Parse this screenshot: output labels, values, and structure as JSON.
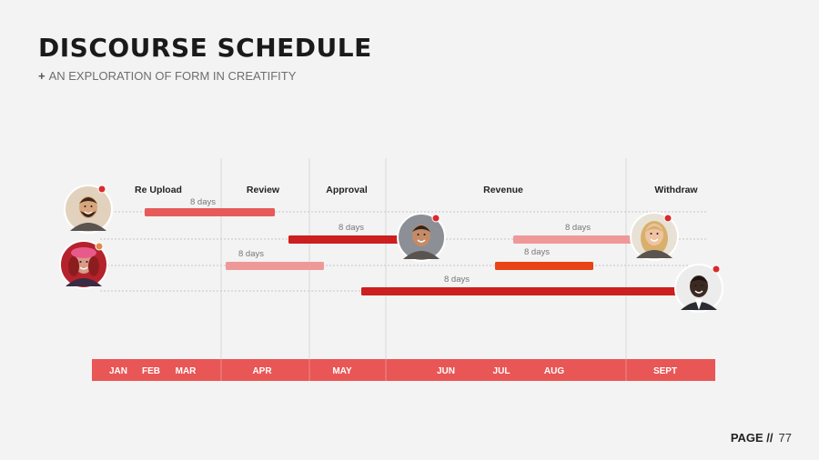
{
  "page": {
    "title": "DISCOURSE SCHEDULE",
    "subtitle_plus": "+",
    "subtitle": "AN EXPLORATION OF FORM IN CREATIFITY",
    "page_label": "PAGE //",
    "page_number": "77"
  },
  "colors": {
    "background": "#f3f3f3",
    "month_band": "#e85656",
    "bar_coral": "#e85a5a",
    "bar_red": "#cc1f1f",
    "bar_pink": "#ef9898",
    "bar_orange": "#e84416",
    "status_dot": "#d92b2b",
    "divider": "#d8d8d8",
    "row_line": "#c4c4c4",
    "duration_text": "#777777"
  },
  "chart_data": {
    "type": "gantt",
    "phases": [
      "Re Upload",
      "Review",
      "Approval",
      "Revenue",
      "Withdraw"
    ],
    "months": [
      "JAN",
      "FEB",
      "MAR",
      "APR",
      "MAY",
      "JUN",
      "JUL",
      "AUG",
      "SEPT"
    ],
    "tasks": [
      {
        "row": 1,
        "start_month": "FEB",
        "end_month": "APR",
        "duration_label": "8 days",
        "color": "coral"
      },
      {
        "row": 2,
        "start_month": "MAY",
        "end_month": "JUN",
        "duration_label": "8 days",
        "color": "red"
      },
      {
        "row": 2,
        "start_month": "JUL",
        "end_month": "SEPT",
        "duration_label": "8 days",
        "color": "pink"
      },
      {
        "row": 3,
        "start_month": "APR",
        "end_month": "MAY",
        "duration_label": "8 days",
        "color": "pink"
      },
      {
        "row": 3,
        "start_month": "JUL",
        "end_month": "AUG",
        "duration_label": "8 days",
        "color": "orange"
      },
      {
        "row": 4,
        "start_month": "MAY",
        "end_month": "SEPT",
        "duration_label": "8 days",
        "color": "red"
      }
    ],
    "avatars": [
      {
        "icon": "man-with-beard-avatar",
        "row": 1
      },
      {
        "icon": "man-smiling-avatar",
        "row": 2
      },
      {
        "icon": "woman-blonde-avatar",
        "row": 2
      },
      {
        "icon": "woman-pink-hat-avatar",
        "row": 3
      },
      {
        "icon": "man-in-suit-avatar",
        "row": 4
      }
    ]
  }
}
